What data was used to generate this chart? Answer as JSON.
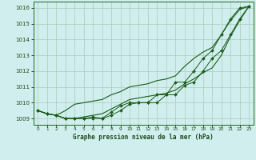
{
  "bg_color": "#d0eeed",
  "grid_color": "#aaccbb",
  "line_color": "#1a5c1a",
  "title": "Graphe pression niveau de la mer (hPa)",
  "ylabel_ticks": [
    1009,
    1010,
    1011,
    1012,
    1013,
    1014,
    1015,
    1016
  ],
  "xlim": [
    -0.5,
    23.5
  ],
  "ylim": [
    1008.6,
    1016.4
  ],
  "x": [
    0,
    1,
    2,
    3,
    4,
    5,
    6,
    7,
    8,
    9,
    10,
    11,
    12,
    13,
    14,
    15,
    16,
    17,
    18,
    19,
    20,
    21,
    22,
    23
  ],
  "line_upper": [
    1009.5,
    1009.3,
    1009.2,
    1009.5,
    1009.9,
    1010.0,
    1010.1,
    1010.2,
    1010.5,
    1010.7,
    1011.0,
    1011.1,
    1011.2,
    1011.4,
    1011.5,
    1011.7,
    1012.3,
    1012.8,
    1013.2,
    1013.5,
    1014.3,
    1015.2,
    1015.9,
    1016.1
  ],
  "line_lower": [
    1009.5,
    1009.3,
    1009.2,
    1009.0,
    1009.0,
    1009.1,
    1009.2,
    1009.3,
    1009.6,
    1009.9,
    1010.2,
    1010.3,
    1010.4,
    1010.5,
    1010.6,
    1010.8,
    1011.2,
    1011.5,
    1011.9,
    1012.2,
    1013.0,
    1014.2,
    1015.2,
    1016.1
  ],
  "line_marker1": [
    1009.5,
    1009.3,
    1009.2,
    1009.0,
    1009.0,
    1009.0,
    1009.1,
    1009.0,
    1009.4,
    1009.8,
    1010.0,
    1010.0,
    1010.0,
    1010.5,
    1010.5,
    1011.3,
    1011.3,
    1012.0,
    1012.8,
    1013.3,
    1014.3,
    1015.3,
    1016.0,
    1016.1
  ],
  "line_marker2": [
    1009.5,
    1009.3,
    1009.2,
    1009.0,
    1009.0,
    1009.0,
    1009.0,
    1009.0,
    1009.2,
    1009.5,
    1009.9,
    1010.0,
    1010.0,
    1010.0,
    1010.5,
    1010.5,
    1011.1,
    1011.3,
    1012.0,
    1012.8,
    1013.3,
    1014.3,
    1015.3,
    1016.1
  ]
}
